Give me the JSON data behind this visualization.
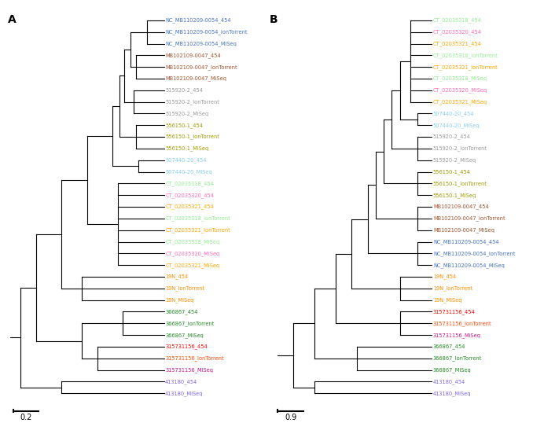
{
  "figure_width": 6.78,
  "figure_height": 5.52,
  "line_color": "#000000",
  "line_width": 0.8,
  "font_size": 4.8,
  "label_font_size": 10,
  "panel_A": {
    "label": "A",
    "scale_bar_label": "0.2",
    "taxa_colors": {
      "NC_MB110209-0054_454": "#4472C4",
      "NC_MB110209-0054_IonTorrent": "#4472C4",
      "NC_MB110209-0054_MiSeq": "#4472C4",
      "MB102109-0047_454": "#A0522D",
      "MB102109-0047_IonTorrent": "#A0522D",
      "MB102109-0047_MiSeq": "#A0522D",
      "515920-2_454": "#999999",
      "515920-2_IonTorrent": "#999999",
      "515920-2_MiSeq": "#999999",
      "556150-1_454": "#9B9B00",
      "556150-1_IonTorrent": "#9B9B00",
      "556150-1_MiSeq": "#9B9B00",
      "507440-20_454": "#87CEEB",
      "507440-20_MiSeq": "#87CEEB",
      "CT_02035318_454": "#90EE90",
      "CT_02035320_454": "#FF69B4",
      "CT_02035321_454": "#FFA500",
      "CT_02035318_IonTorrent": "#90EE90",
      "CT_02035321_IonTorrent": "#FFA500",
      "CT_02035318_MiSeq": "#90EE90",
      "CT_02035320_MiSeq": "#FF69B4",
      "CT_02035321_MiSeq": "#FFA500",
      "19N_454": "#FF8C00",
      "19N_IonTorrent": "#FF8C00",
      "19N_MiSeq": "#FF8C00",
      "366867_454": "#228B22",
      "366867_IonTorrent": "#228B22",
      "366867_MiSeq": "#228B22",
      "315731156_454": "#FF0000",
      "315731156_IonTorrent": "#FF4500",
      "315731156_MiSeq": "#C71585",
      "413180_454": "#7B68EE",
      "413180_MiSeq": "#7B68EE"
    },
    "leaves": [
      "NC_MB110209-0054_454",
      "NC_MB110209-0054_IonTorrent",
      "NC_MB110209-0054_MiSeq",
      "MB102109-0047_454",
      "MB102109-0047_IonTorrent",
      "MB102109-0047_MiSeq",
      "515920-2_454",
      "515920-2_IonTorrent",
      "515920-2_MiSeq",
      "556150-1_454",
      "556150-1_IonTorrent",
      "556150-1_MiSeq",
      "507440-20_454",
      "507440-20_MiSeq",
      "CT_02035318_454",
      "CT_02035320_454",
      "CT_02035321_454",
      "CT_02035318_IonTorrent",
      "CT_02035321_IonTorrent",
      "CT_02035318_MiSeq",
      "CT_02035320_MiSeq",
      "CT_02035321_MiSeq",
      "19N_454",
      "19N_IonTorrent",
      "19N_MiSeq",
      "366867_454",
      "366867_IonTorrent",
      "366867_MiSeq",
      "315731156_454",
      "315731156_IonTorrent",
      "315731156_MiSeq",
      "413180_454",
      "413180_MiSeq"
    ]
  },
  "panel_B": {
    "label": "B",
    "scale_bar_label": "0.9",
    "taxa_colors": {
      "CT_02035318_454": "#90EE90",
      "CT_02035320_454": "#FF69B4",
      "CT_02035321_454": "#FFA500",
      "CT_02035318_IonTorrent": "#90EE90",
      "CT_02035321_IonTorrent": "#FFA500",
      "CT_02035318_MiSeq": "#90EE90",
      "CT_02035320_MiSeq": "#FF69B4",
      "CT_02035321_MiSeq": "#FFA500",
      "507440-20_454": "#87CEEB",
      "507440-20_MiSeq": "#87CEEB",
      "515920-2_454": "#999999",
      "515920-2_IonTorrent": "#999999",
      "515920-2_MiSeq": "#999999",
      "556150-1_454": "#9B9B00",
      "556150-1_IonTorrent": "#9B9B00",
      "556150-1_MiSeq": "#9B9B00",
      "MB102109-0047_454": "#A0522D",
      "MB102109-0047_IonTorrent": "#A0522D",
      "MB102109-0047_MiSeq": "#A0522D",
      "NC_MB110209-0054_454": "#4472C4",
      "NC_MB110209-0054_IonTorrent": "#4472C4",
      "NC_MB110209-0054_MiSeq": "#4472C4",
      "19N_454": "#FF8C00",
      "19N_IonTorrent": "#FF8C00",
      "19N_MiSeq": "#FF8C00",
      "315731156_454": "#FF0000",
      "315731156_IonTorrent": "#FF4500",
      "315731156_MiSeq": "#C71585",
      "366867_454": "#228B22",
      "366867_IonTorrent": "#228B22",
      "366867_MiSeq": "#228B22",
      "413180_454": "#7B68EE",
      "413180_MiSeq": "#7B68EE"
    },
    "leaves": [
      "CT_02035318_454",
      "CT_02035320_454",
      "CT_02035321_454",
      "CT_02035318_IonTorrent",
      "CT_02035321_IonTorrent",
      "CT_02035318_MiSeq",
      "CT_02035320_MiSeq",
      "CT_02035321_MiSeq",
      "507440-20_454",
      "507440-20_MiSeq",
      "515920-2_454",
      "515920-2_IonTorrent",
      "515920-2_MiSeq",
      "556150-1_454",
      "556150-1_IonTorrent",
      "556150-1_MiSeq",
      "MB102109-0047_454",
      "MB102109-0047_IonTorrent",
      "MB102109-0047_MiSeq",
      "NC_MB110209-0054_454",
      "NC_MB110209-0054_IonTorrent",
      "NC_MB110209-0054_MiSeq",
      "19N_454",
      "19N_IonTorrent",
      "19N_MiSeq",
      "315731156_454",
      "315731156_IonTorrent",
      "315731156_MiSeq",
      "366867_454",
      "366867_IonTorrent",
      "366867_MiSeq",
      "413180_454",
      "413180_MiSeq"
    ]
  }
}
